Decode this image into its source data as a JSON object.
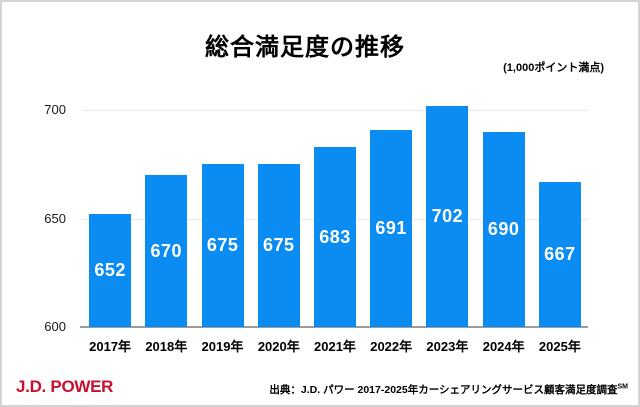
{
  "chart_data": {
    "type": "bar",
    "title": "総合満足度の推移",
    "subtitle": "(1,000ポイント満点)",
    "categories": [
      "2017年",
      "2018年",
      "2019年",
      "2020年",
      "2021年",
      "2022年",
      "2023年",
      "2024年",
      "2025年"
    ],
    "values": [
      652,
      670,
      675,
      675,
      683,
      691,
      702,
      690,
      667
    ],
    "xlabel": "",
    "ylabel": "",
    "ylim": [
      600,
      710
    ],
    "yticks": [
      600,
      650,
      700
    ],
    "grid": true,
    "legend": "none",
    "bar_color": "#0b8cf2",
    "bar_label_color": "#ffffff"
  },
  "footer": {
    "logo_text": "J.D. POWER",
    "source_text": "出典：J.D. パワー 2017-2025年カーシェアリングサービス顧客満足度調査",
    "source_superscript": "SM"
  }
}
